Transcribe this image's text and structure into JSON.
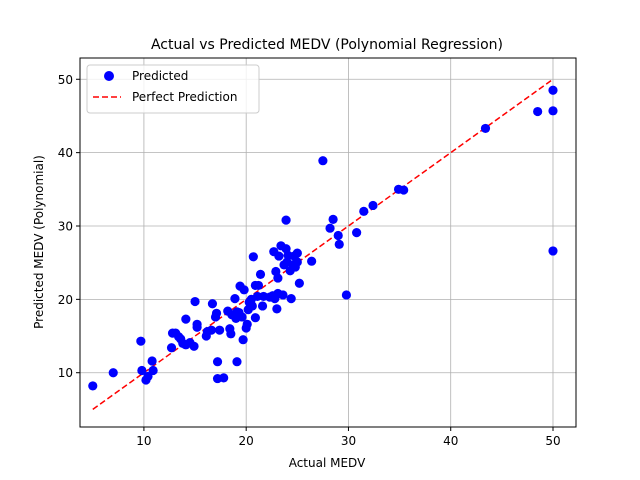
{
  "chart_data": {
    "type": "scatter",
    "title": "Actual vs Predicted MEDV (Polynomial Regression)",
    "xlabel": "Actual MEDV",
    "ylabel": "Predicted MEDV (Polynomial)",
    "xlim": [
      3.75,
      52.25
    ],
    "ylim": [
      2.6,
      52.9
    ],
    "xticks": [
      10,
      20,
      30,
      40,
      50
    ],
    "yticks": [
      10,
      20,
      30,
      40,
      50
    ],
    "grid": true,
    "legend_position": "upper-left",
    "series": [
      {
        "name": "Predicted",
        "kind": "scatter",
        "color": "#0000ff",
        "points": [
          [
            5.0,
            8.2
          ],
          [
            7.0,
            10.0
          ],
          [
            9.7,
            14.3
          ],
          [
            9.8,
            10.3
          ],
          [
            10.2,
            9.0
          ],
          [
            10.4,
            9.5
          ],
          [
            10.8,
            11.6
          ],
          [
            10.9,
            10.3
          ],
          [
            12.7,
            13.4
          ],
          [
            12.8,
            15.4
          ],
          [
            13.1,
            15.4
          ],
          [
            13.4,
            14.9
          ],
          [
            13.6,
            14.6
          ],
          [
            13.8,
            14.0
          ],
          [
            14.1,
            13.8
          ],
          [
            14.1,
            17.3
          ],
          [
            14.5,
            14.1
          ],
          [
            14.9,
            13.6
          ],
          [
            15.0,
            19.7
          ],
          [
            15.2,
            16.2
          ],
          [
            15.2,
            16.6
          ],
          [
            16.1,
            15.0
          ],
          [
            16.2,
            15.6
          ],
          [
            16.6,
            15.8
          ],
          [
            16.7,
            19.4
          ],
          [
            17.0,
            17.6
          ],
          [
            17.1,
            18.1
          ],
          [
            17.2,
            11.5
          ],
          [
            17.2,
            9.2
          ],
          [
            17.4,
            15.8
          ],
          [
            17.8,
            9.3
          ],
          [
            18.2,
            18.4
          ],
          [
            18.4,
            16.0
          ],
          [
            18.5,
            15.3
          ],
          [
            18.6,
            17.9
          ],
          [
            18.9,
            20.1
          ],
          [
            19.0,
            17.4
          ],
          [
            19.1,
            18.3
          ],
          [
            19.1,
            11.5
          ],
          [
            19.3,
            18.2
          ],
          [
            19.4,
            21.8
          ],
          [
            19.6,
            17.6
          ],
          [
            19.7,
            14.5
          ],
          [
            19.8,
            21.3
          ],
          [
            20.0,
            16.1
          ],
          [
            20.1,
            16.6
          ],
          [
            20.2,
            18.6
          ],
          [
            20.3,
            19.6
          ],
          [
            20.5,
            20.0
          ],
          [
            20.6,
            19.1
          ],
          [
            20.7,
            25.8
          ],
          [
            20.9,
            17.5
          ],
          [
            20.9,
            21.9
          ],
          [
            21.1,
            20.4
          ],
          [
            21.2,
            21.9
          ],
          [
            21.4,
            23.4
          ],
          [
            21.6,
            19.1
          ],
          [
            21.7,
            20.4
          ],
          [
            22.3,
            20.3
          ],
          [
            22.6,
            20.5
          ],
          [
            22.7,
            26.5
          ],
          [
            22.8,
            20.1
          ],
          [
            22.9,
            23.8
          ],
          [
            23.0,
            18.7
          ],
          [
            23.1,
            20.8
          ],
          [
            23.1,
            22.9
          ],
          [
            23.2,
            25.9
          ],
          [
            23.4,
            27.3
          ],
          [
            23.6,
            20.6
          ],
          [
            23.7,
            24.7
          ],
          [
            23.9,
            26.9
          ],
          [
            23.9,
            30.8
          ],
          [
            24.0,
            25.1
          ],
          [
            24.1,
            26.0
          ],
          [
            24.3,
            23.9
          ],
          [
            24.4,
            20.1
          ],
          [
            24.6,
            24.7
          ],
          [
            24.7,
            25.9
          ],
          [
            24.8,
            24.4
          ],
          [
            25.0,
            26.3
          ],
          [
            25.0,
            25.1
          ],
          [
            25.2,
            22.2
          ],
          [
            26.4,
            25.2
          ],
          [
            27.5,
            38.9
          ],
          [
            28.2,
            29.7
          ],
          [
            28.5,
            30.9
          ],
          [
            29.0,
            28.7
          ],
          [
            29.1,
            27.5
          ],
          [
            29.8,
            20.6
          ],
          [
            30.8,
            29.1
          ],
          [
            31.5,
            32.0
          ],
          [
            32.4,
            32.8
          ],
          [
            34.9,
            35.0
          ],
          [
            35.4,
            34.9
          ],
          [
            43.4,
            43.3
          ],
          [
            48.5,
            45.6
          ],
          [
            50.0,
            48.5
          ],
          [
            50.0,
            45.7
          ],
          [
            50.0,
            26.6
          ]
        ]
      },
      {
        "name": "Perfect Prediction",
        "kind": "line",
        "style": "dashed",
        "color": "#ff0000",
        "points": [
          [
            5.0,
            5.0
          ],
          [
            50.0,
            50.0
          ]
        ]
      }
    ]
  }
}
